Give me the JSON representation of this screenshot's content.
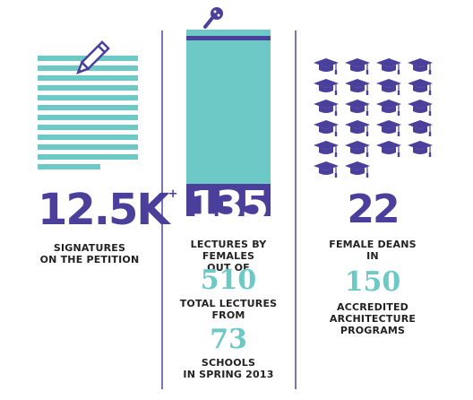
{
  "panel1": {
    "value": "12.5K",
    "suffix": "+",
    "label_line1": "SIGNATURES",
    "label_line2": "ON THE PETITION",
    "icon": "pencil-icon"
  },
  "panel2": {
    "value": "135",
    "label_line1": "LECTURES BY FEMALES",
    "label_line2": "OUT OF",
    "total": "510",
    "total_line1": "TOTAL LECTURES",
    "total_line2": "FROM",
    "schools": "73",
    "schools_line1": "SCHOOLS",
    "schools_line2": "IN SPRING 2013",
    "icon": "microphone-icon",
    "bar_fraction": 0.265
  },
  "panel3": {
    "value": "22",
    "label_line1": "FEMALE DEANS",
    "label_line2": "IN",
    "total": "150",
    "total_line1": "ACCREDITED",
    "total_line2": "ARCHITECTURE",
    "total_line3": "PROGRAMS",
    "icon": "graduation-cap-icon",
    "cap_count": 22
  },
  "colors": {
    "purple": "#4a3f9b",
    "teal": "#6cc9c6",
    "divider": "#7a74b8"
  }
}
